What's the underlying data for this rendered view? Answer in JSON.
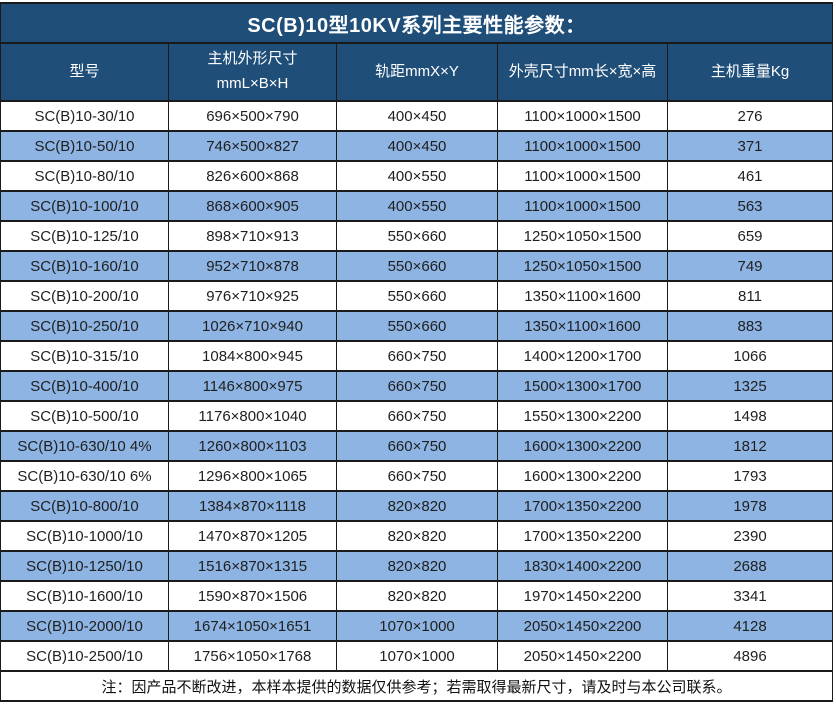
{
  "title": "SC(B)10型10KV系列主要性能参数：",
  "colors": {
    "header_bg": "#1F4E79",
    "stripe_bg": "#8DB4E2",
    "row_bg": "#FFFFFF",
    "border": "#1A1A1A",
    "header_text": "#FFFFFF",
    "body_text": "#1F1F1F"
  },
  "table": {
    "columns": [
      "型号",
      "主机外形尺寸\nmmL×B×H",
      "轨距mmX×Y",
      "外壳尺寸mm长×宽×高",
      "主机重量Kg"
    ],
    "rows": [
      [
        "SC(B)10-30/10",
        "696×500×790",
        "400×450",
        "1100×1000×1500",
        "276"
      ],
      [
        "SC(B)10-50/10",
        "746×500×827",
        "400×450",
        "1100×1000×1500",
        "371"
      ],
      [
        "SC(B)10-80/10",
        "826×600×868",
        "400×550",
        "1100×1000×1500",
        "461"
      ],
      [
        "SC(B)10-100/10",
        "868×600×905",
        "400×550",
        "1100×1000×1500",
        "563"
      ],
      [
        "SC(B)10-125/10",
        "898×710×913",
        "550×660",
        "1250×1050×1500",
        "659"
      ],
      [
        "SC(B)10-160/10",
        "952×710×878",
        "550×660",
        "1250×1050×1500",
        "749"
      ],
      [
        "SC(B)10-200/10",
        "976×710×925",
        "550×660",
        "1350×1100×1600",
        "811"
      ],
      [
        "SC(B)10-250/10",
        "1026×710×940",
        "550×660",
        "1350×1100×1600",
        "883"
      ],
      [
        "SC(B)10-315/10",
        "1084×800×945",
        "660×750",
        "1400×1200×1700",
        "1066"
      ],
      [
        "SC(B)10-400/10",
        "1146×800×975",
        "660×750",
        "1500×1300×1700",
        "1325"
      ],
      [
        "SC(B)10-500/10",
        "1176×800×1040",
        "660×750",
        "1550×1300×2200",
        "1498"
      ],
      [
        "SC(B)10-630/10 4%",
        "1260×800×1103",
        "660×750",
        "1600×1300×2200",
        "1812"
      ],
      [
        "SC(B)10-630/10 6%",
        "1296×800×1065",
        "660×750",
        "1600×1300×2200",
        "1793"
      ],
      [
        "SC(B)10-800/10",
        "1384×870×1118",
        "820×820",
        "1700×1350×2200",
        "1978"
      ],
      [
        "SC(B)10-1000/10",
        "1470×870×1205",
        "820×820",
        "1700×1350×2200",
        "2390"
      ],
      [
        "SC(B)10-1250/10",
        "1516×870×1315",
        "820×820",
        "1830×1400×2200",
        "2688"
      ],
      [
        "SC(B)10-1600/10",
        "1590×870×1506",
        "820×820",
        "1970×1450×2200",
        "3341"
      ],
      [
        "SC(B)10-2000/10",
        "1674×1050×1651",
        "1070×1000",
        "2050×1450×2200",
        "4128"
      ],
      [
        "SC(B)10-2500/10",
        "1756×1050×1768",
        "1070×1000",
        "2050×1450×2200",
        "4896"
      ]
    ],
    "note": "注：因产品不断改进，本样本提供的数据仅供参考；若需取得最新尺寸，请及时与本公司联系。"
  }
}
